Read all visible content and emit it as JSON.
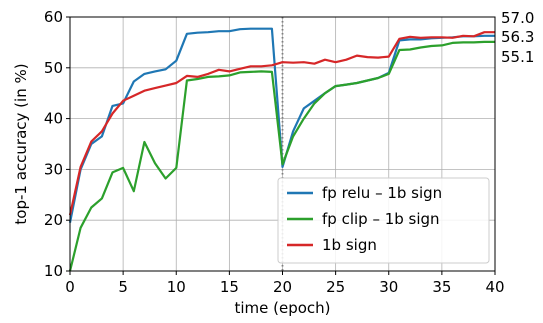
{
  "chart_data": {
    "type": "line",
    "xlabel": "time (epoch)",
    "ylabel": "top-1 accuracy (in %)",
    "xlim": [
      0,
      40
    ],
    "ylim": [
      10,
      60
    ],
    "xticks": [
      0,
      5,
      10,
      15,
      20,
      25,
      30,
      35,
      40
    ],
    "yticks": [
      10,
      20,
      30,
      40,
      50,
      60
    ],
    "grid": true,
    "legend_position": "lower-right",
    "vline": {
      "x": 20,
      "style": "dotted",
      "color": "#7f7f7f"
    },
    "series": [
      {
        "name": "fp relu – 1b sign",
        "color": "#1f77b4",
        "x": [
          0,
          1,
          2,
          3,
          4,
          5,
          6,
          7,
          8,
          9,
          10,
          11,
          12,
          13,
          14,
          15,
          16,
          17,
          18,
          19,
          20,
          21,
          22,
          23,
          24,
          25,
          26,
          27,
          28,
          29,
          30,
          31,
          32,
          33,
          34,
          35,
          36,
          37,
          38,
          39,
          40
        ],
        "y": [
          19.5,
          30,
          35,
          36.5,
          42.5,
          43,
          47.3,
          48.8,
          49.3,
          49.7,
          51.4,
          56.7,
          56.9,
          57.0,
          57.2,
          57.2,
          57.6,
          57.7,
          57.7,
          57.7,
          30.5,
          37.5,
          42,
          43.5,
          45,
          46.4,
          46.7,
          47,
          47.5,
          48,
          49,
          55.4,
          55.6,
          55.6,
          55.8,
          55.9,
          56.0,
          56.2,
          56.2,
          56.3,
          56.3
        ]
      },
      {
        "name": "fp clip – 1b sign",
        "color": "#2ca02c",
        "x": [
          0,
          1,
          2,
          3,
          4,
          5,
          6,
          7,
          8,
          9,
          10,
          11,
          12,
          13,
          14,
          15,
          16,
          17,
          18,
          19,
          20,
          21,
          22,
          23,
          24,
          25,
          26,
          27,
          28,
          29,
          30,
          31,
          32,
          33,
          34,
          35,
          36,
          37,
          38,
          39,
          40
        ],
        "y": [
          10,
          18.5,
          22.5,
          24.3,
          29.4,
          30.3,
          25.7,
          35.4,
          31.2,
          28.2,
          30.3,
          47.5,
          47.8,
          48.2,
          48.3,
          48.5,
          49.1,
          49.2,
          49.3,
          49.2,
          31,
          36.5,
          40,
          43,
          45,
          46.4,
          46.7,
          47,
          47.5,
          48,
          48.8,
          53.5,
          53.6,
          54.0,
          54.3,
          54.4,
          54.9,
          55.0,
          55.0,
          55.1,
          55.1
        ]
      },
      {
        "name": "1b sign",
        "color": "#d62728",
        "x": [
          0,
          1,
          2,
          3,
          4,
          5,
          6,
          7,
          8,
          9,
          10,
          11,
          12,
          13,
          14,
          15,
          16,
          17,
          18,
          19,
          20,
          21,
          22,
          23,
          24,
          25,
          26,
          27,
          28,
          29,
          30,
          31,
          32,
          33,
          34,
          35,
          36,
          37,
          38,
          39,
          40
        ],
        "y": [
          21,
          30.5,
          35.5,
          37.5,
          41,
          43.5,
          44.5,
          45.5,
          46,
          46.5,
          47,
          48.4,
          48.2,
          48.8,
          49.6,
          49.3,
          49.8,
          50.3,
          50.3,
          50.5,
          51.1,
          51.0,
          51.1,
          50.8,
          51.6,
          51.1,
          51.6,
          52.4,
          52.1,
          52.0,
          52.2,
          55.7,
          56.1,
          55.9,
          56.0,
          56.0,
          55.9,
          56.3,
          56.2,
          57.0,
          57.0
        ]
      }
    ],
    "end_labels": [
      "57.0",
      "56.3",
      "55.1"
    ]
  }
}
